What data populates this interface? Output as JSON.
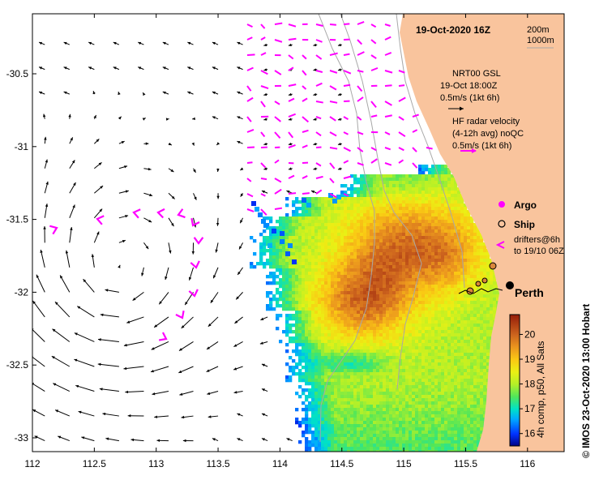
{
  "title": "19-Oct-2020 16Z",
  "contours": {
    "c200": "200m",
    "c1000": "1000m"
  },
  "gsl_legend": {
    "line1": "NRT00 GSL",
    "line2": "19-Oct 18:00Z",
    "line3": "0.5m/s (1kt 6h)"
  },
  "hf_legend": {
    "line1": "HF radar velocity",
    "line2": "(4-12h avg) noQC",
    "line3": "0.5m/s (1kt 6h)"
  },
  "symbols": {
    "argo": "Argo",
    "ship": "Ship",
    "drifters1": "drifters@6h",
    "drifters2": "to 19/10 06Z"
  },
  "city": "Perth",
  "colorbar": {
    "label": "4h comp, p50, All Sats",
    "ticks": [
      "20",
      "19",
      "18",
      "17",
      "16"
    ],
    "range": [
      15.5,
      20.8
    ]
  },
  "credit": "© IMOS 23-Oct-2020 13:00 Hobart",
  "x_ticks": [
    "112",
    "112.5",
    "113",
    "113.5",
    "114",
    "114.5",
    "115",
    "115.5",
    "116"
  ],
  "y_ticks": [
    "-30.5",
    "-31",
    "-31.5",
    "-32",
    "-32.5",
    "-33"
  ],
  "colors": {
    "land": "#f9c49d",
    "gsl_arrow": "#000000",
    "hf_arrow": "#ff00ff",
    "contour": "#a8a8a8"
  }
}
